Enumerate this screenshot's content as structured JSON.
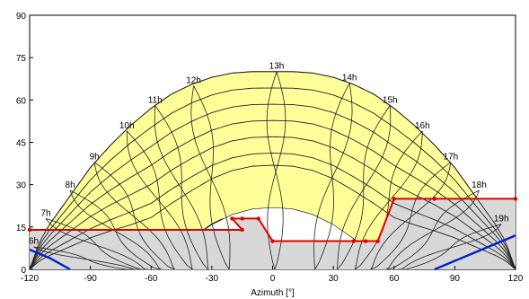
{
  "chart_data": {
    "type": "line",
    "title": "",
    "xlabel": "Azimuth [°]",
    "ylabel": "",
    "xlim": [
      -120,
      120
    ],
    "ylim": [
      0,
      90
    ],
    "x_ticks": [
      -120,
      -90,
      -60,
      -30,
      0,
      30,
      60,
      90,
      120
    ],
    "y_ticks": [
      0,
      15,
      30,
      45,
      60,
      75,
      90
    ],
    "grid": false,
    "colors": {
      "sun_region": "#ffff99",
      "obstruction_fill": "#d8d8d8",
      "horizon_line": "#dd0000",
      "blue_line": "#0022cc",
      "curves": "#222222"
    },
    "sun_envelope": {
      "x": [
        -120,
        -115,
        -110,
        -100,
        -90,
        -80,
        -70,
        -60,
        -50,
        -40,
        -30,
        -20,
        -10,
        0,
        10,
        20,
        30,
        40,
        50,
        60,
        70,
        80,
        90,
        100,
        110,
        115,
        120
      ],
      "y_upper": [
        0,
        10,
        16,
        26,
        36,
        44,
        51,
        57,
        62,
        65.5,
        68,
        69.5,
        70,
        70,
        70,
        69.5,
        68,
        65.5,
        62,
        57,
        51,
        44,
        36,
        26,
        16,
        10,
        0
      ],
      "y_lower": [
        0,
        0,
        0,
        0,
        0,
        0,
        0,
        1,
        6,
        11,
        16,
        19.5,
        21.5,
        22,
        21.5,
        19.5,
        16,
        11,
        6,
        1,
        0,
        0,
        0,
        0,
        0,
        0,
        0
      ]
    },
    "horizon_profile": {
      "x": [
        -120,
        -15,
        -20,
        -15,
        -7,
        0,
        40,
        46,
        52,
        60,
        80,
        120
      ],
      "y": [
        14,
        14,
        18,
        18,
        18,
        10,
        10,
        10,
        10,
        25,
        25,
        25
      ]
    },
    "blue_lines": [
      {
        "x": [
          -120,
          -110,
          -100
        ],
        "y": [
          7,
          4,
          0
        ]
      },
      {
        "x": [
          80,
          100,
          120
        ],
        "y": [
          0,
          6,
          12
        ]
      }
    ],
    "hour_labels": [
      {
        "label": "6h",
        "x": -118,
        "y": 9
      },
      {
        "label": "7h",
        "x": -112,
        "y": 19
      },
      {
        "label": "8h",
        "x": -100,
        "y": 29
      },
      {
        "label": "9h",
        "x": -88,
        "y": 39
      },
      {
        "label": "10h",
        "x": -72,
        "y": 50
      },
      {
        "label": "11h",
        "x": -58,
        "y": 59
      },
      {
        "label": "12h",
        "x": -39,
        "y": 66
      },
      {
        "label": "13h",
        "x": 2,
        "y": 71
      },
      {
        "label": "14h",
        "x": 38,
        "y": 67
      },
      {
        "label": "15h",
        "x": 58,
        "y": 59
      },
      {
        "label": "16h",
        "x": 74,
        "y": 50
      },
      {
        "label": "17h",
        "x": 88,
        "y": 39
      },
      {
        "label": "18h",
        "x": 102,
        "y": 29
      },
      {
        "label": "19h",
        "x": 113,
        "y": 17
      }
    ]
  }
}
